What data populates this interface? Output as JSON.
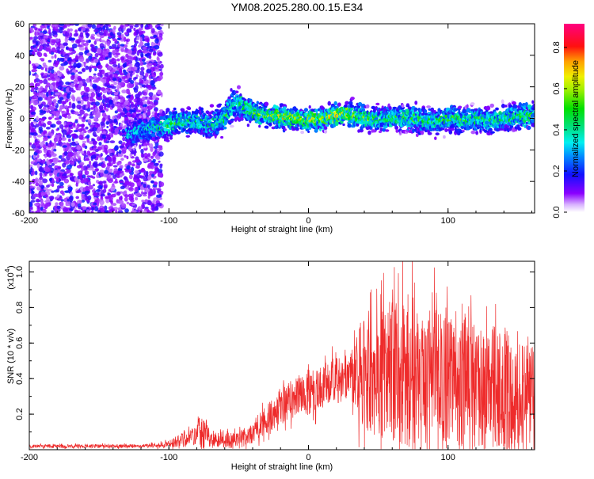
{
  "title": "YM08.2025.280.00.15.E34",
  "chart_data": [
    {
      "type": "heatmap",
      "title": "YM08.2025.280.00.15.E34",
      "xlabel": "Height of straight line (km)",
      "ylabel": "Frequency (Hz)",
      "xlim": [
        -200,
        162
      ],
      "ylim": [
        -60,
        60
      ],
      "xticks": [
        "-200",
        "-100",
        "0",
        "100"
      ],
      "yticks": [
        "60",
        "40",
        "20",
        "0",
        "-20",
        "-40",
        "-60"
      ],
      "noise_region_x": [
        -200,
        -105
      ],
      "track": {
        "x": [
          -130,
          -120,
          -110,
          -100,
          -90,
          -80,
          -70,
          -60,
          -55,
          -50,
          -45,
          -40,
          -30,
          -20,
          -10,
          0,
          10,
          20,
          30,
          40,
          50,
          60,
          70,
          80,
          90,
          100,
          110,
          120,
          130,
          140,
          150,
          160
        ],
        "center_freq": [
          -10,
          -8,
          -6,
          -4,
          -2,
          -2,
          -4,
          0,
          8,
          10,
          6,
          4,
          2,
          1,
          0,
          -1,
          0,
          2,
          3,
          0,
          -1,
          0,
          1,
          -1,
          -2,
          0,
          -1,
          0,
          -2,
          0,
          1,
          2
        ],
        "halfwidth": [
          8,
          8,
          8,
          9,
          8,
          8,
          9,
          9,
          10,
          10,
          9,
          8,
          7,
          7,
          7,
          7,
          7,
          7,
          8,
          8,
          8,
          8,
          8,
          8,
          8,
          8,
          8,
          8,
          8,
          8,
          8,
          8
        ],
        "peak_amplitude": [
          0.3,
          0.35,
          0.4,
          0.45,
          0.45,
          0.4,
          0.4,
          0.45,
          0.4,
          0.4,
          0.45,
          0.5,
          0.5,
          0.6,
          0.55,
          0.6,
          0.6,
          0.65,
          0.55,
          0.5,
          0.45,
          0.45,
          0.45,
          0.45,
          0.45,
          0.45,
          0.45,
          0.45,
          0.45,
          0.45,
          0.45,
          0.5
        ]
      },
      "colorbar": {
        "label": "Normalized spectral amplitude",
        "range": [
          0,
          0.915
        ],
        "ticks": [
          "0.0",
          "0.2",
          "0.4",
          "0.6",
          "0.8"
        ]
      }
    },
    {
      "type": "line",
      "xlabel": "Height of straight line (km)",
      "ylabel": "SNR (10 * v/v)",
      "yscale_label": "(x10",
      "yscale_exp": "4",
      "xlim": [
        -200,
        162
      ],
      "ylim": [
        0,
        1.06
      ],
      "xticks": [
        "-200",
        "-100",
        "0",
        "100"
      ],
      "yticks": [
        "0.2",
        "0.4",
        "0.6",
        "0.8",
        "1.0"
      ],
      "series": [
        {
          "name": "SNR",
          "color": "#ee2b2b",
          "x": [
            -200,
            -190,
            -180,
            -170,
            -160,
            -150,
            -140,
            -130,
            -120,
            -110,
            -100,
            -90,
            -80,
            -77,
            -70,
            -60,
            -50,
            -40,
            -30,
            -20,
            -10,
            0,
            10,
            20,
            30,
            40,
            50,
            60,
            70,
            80,
            90,
            100,
            110,
            120,
            130,
            140,
            150,
            160
          ],
          "mean": [
            0.02,
            0.02,
            0.02,
            0.02,
            0.02,
            0.02,
            0.02,
            0.02,
            0.02,
            0.025,
            0.03,
            0.06,
            0.08,
            0.12,
            0.06,
            0.05,
            0.05,
            0.1,
            0.17,
            0.24,
            0.29,
            0.33,
            0.37,
            0.4,
            0.42,
            0.45,
            0.42,
            0.45,
            0.45,
            0.43,
            0.42,
            0.4,
            0.38,
            0.36,
            0.35,
            0.35,
            0.33,
            0.32
          ],
          "spread": [
            0.01,
            0.01,
            0.01,
            0.01,
            0.01,
            0.01,
            0.01,
            0.01,
            0.01,
            0.012,
            0.02,
            0.04,
            0.05,
            0.12,
            0.04,
            0.04,
            0.05,
            0.06,
            0.08,
            0.1,
            0.12,
            0.14,
            0.12,
            0.12,
            0.13,
            0.35,
            0.35,
            0.4,
            0.45,
            0.4,
            0.38,
            0.4,
            0.4,
            0.38,
            0.35,
            0.35,
            0.35,
            0.32
          ]
        }
      ]
    }
  ]
}
